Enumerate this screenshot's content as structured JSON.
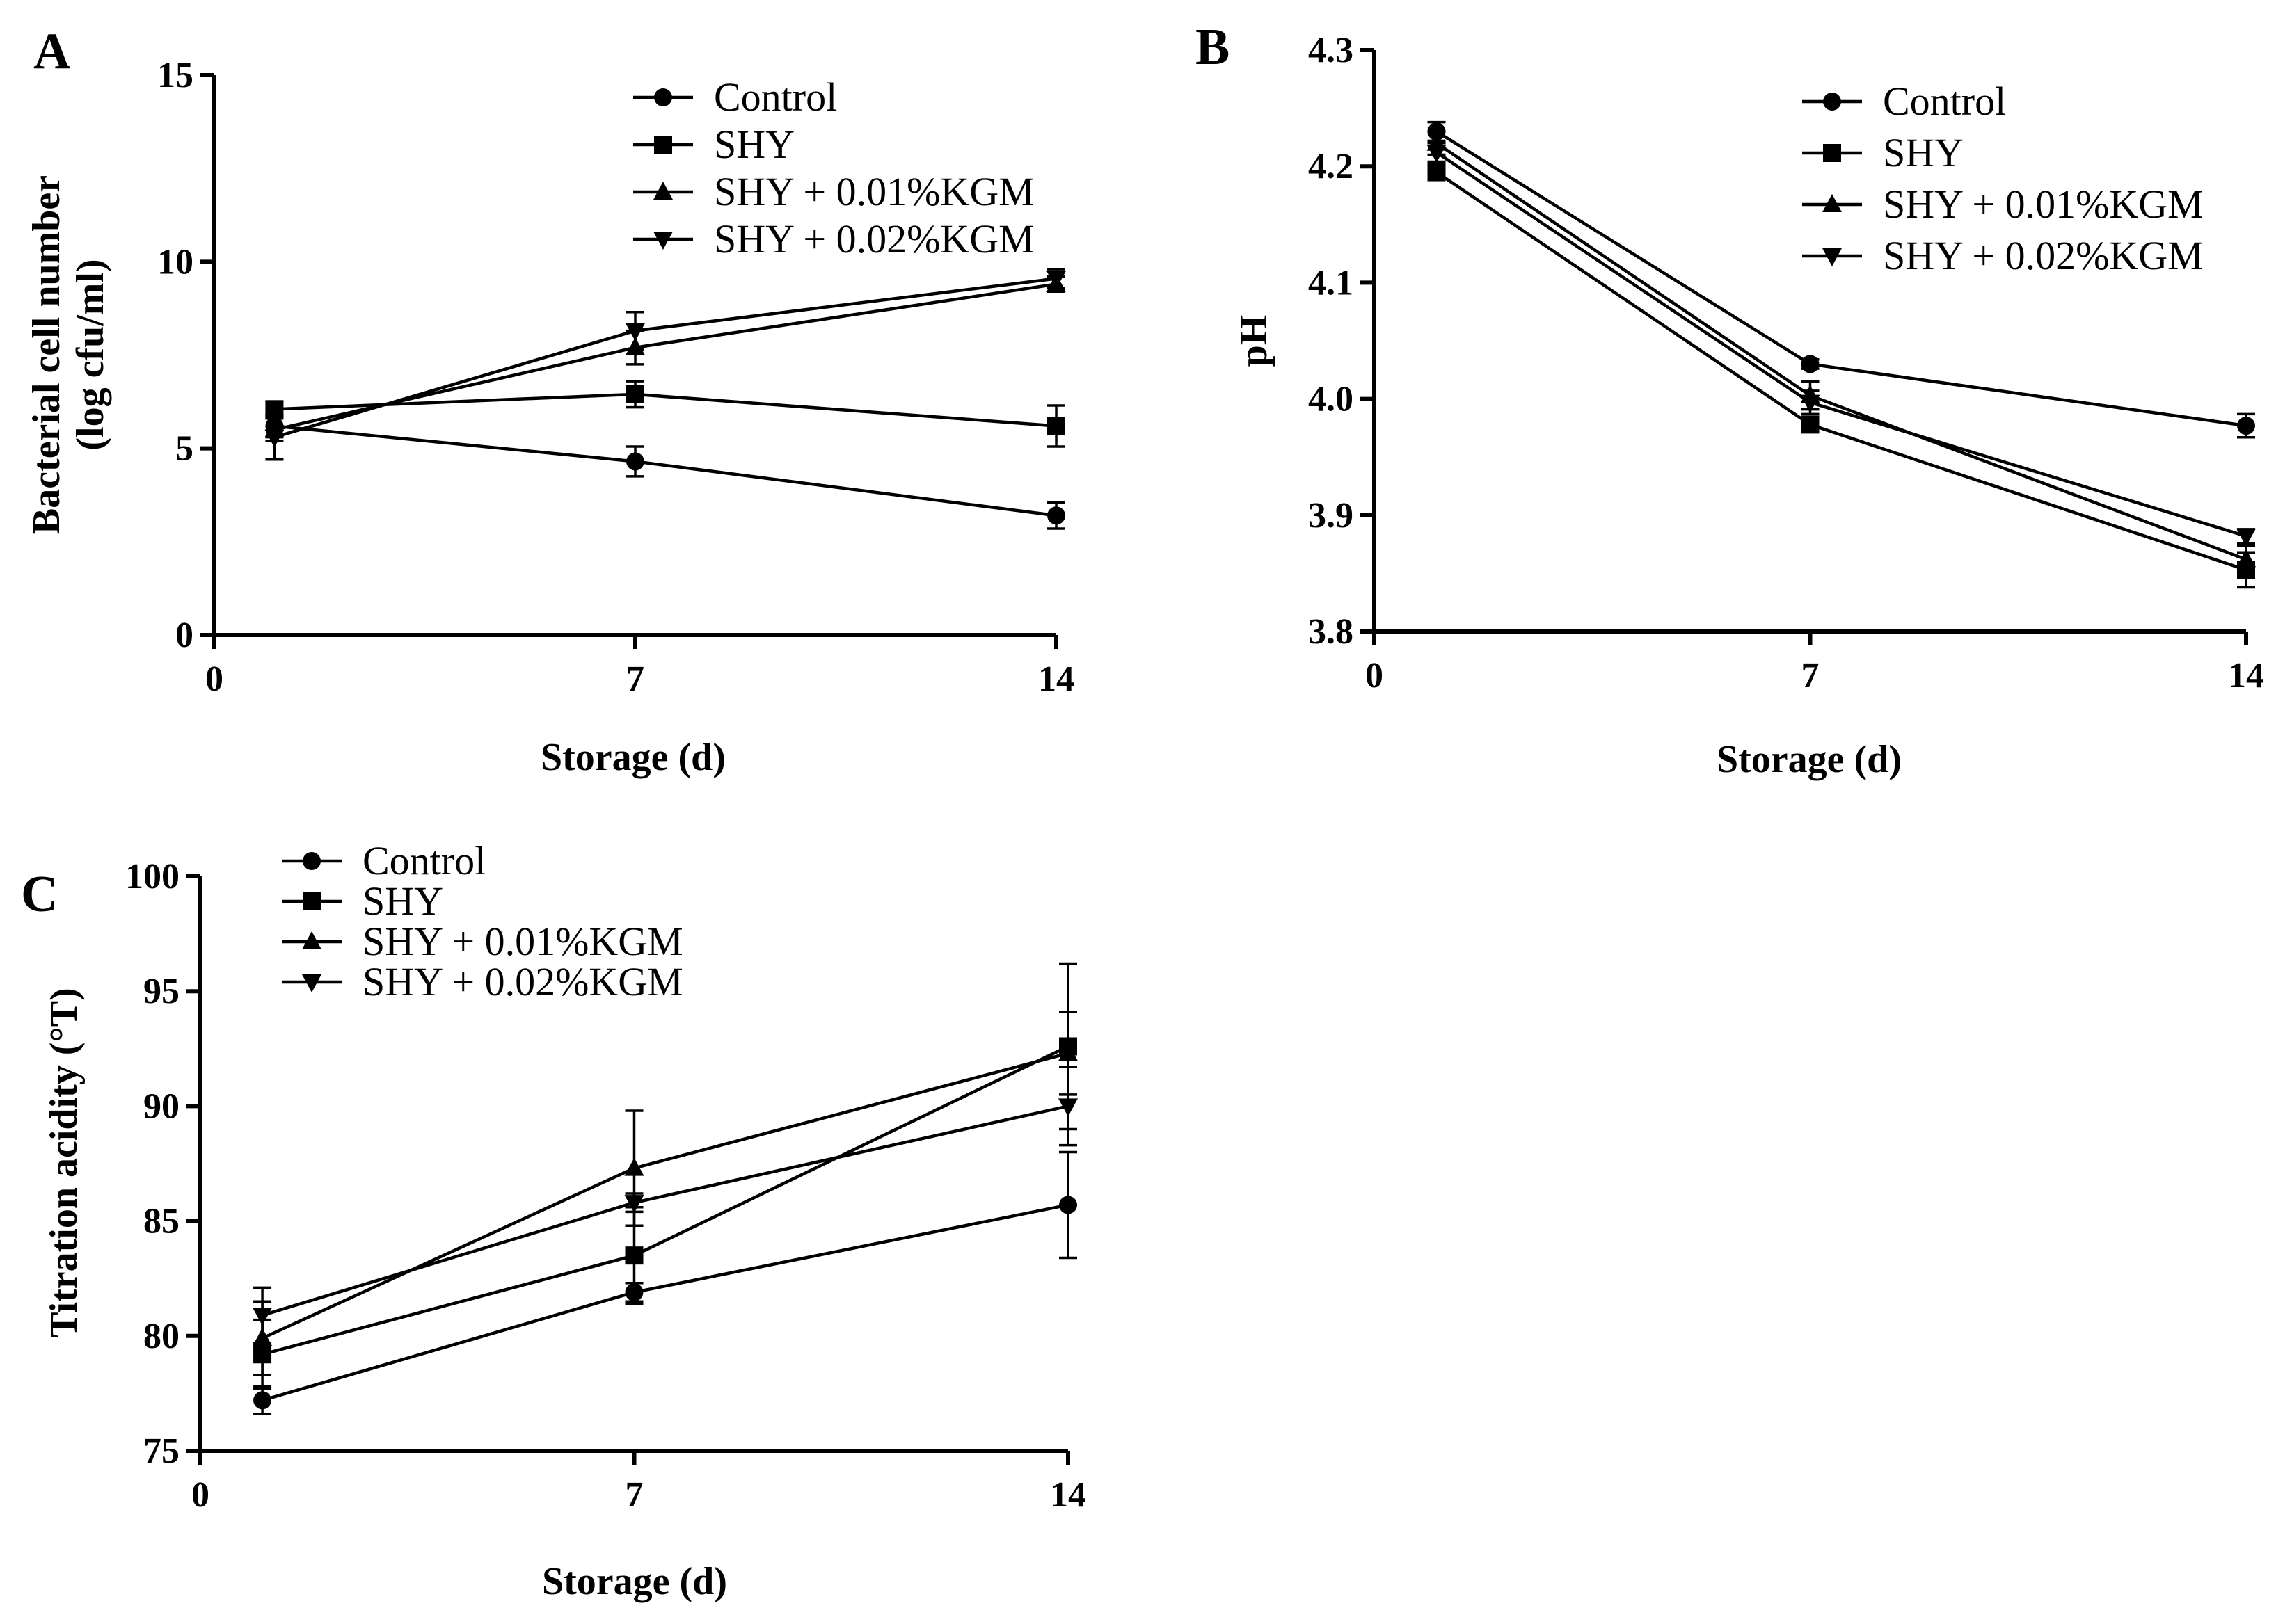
{
  "figure": {
    "panels": [
      "A",
      "B",
      "C"
    ]
  },
  "chart_data": [
    {
      "panel": "A",
      "type": "line",
      "xlabel": "Storage (d)",
      "ylabel": [
        "Bacterial cell number",
        "(log cfu/ml)"
      ],
      "xlim": [
        0,
        14
      ],
      "ylim": [
        0,
        15
      ],
      "xticks": [
        0,
        7,
        14
      ],
      "yticks": [
        0,
        5,
        10,
        15
      ],
      "x": [
        1,
        7,
        14
      ],
      "legend_placement": "top-right",
      "series": [
        {
          "name": "Control",
          "marker": "circle",
          "values": [
            5.6,
            4.65,
            3.2
          ],
          "errors": [
            0.3,
            0.4,
            0.35
          ]
        },
        {
          "name": "SHY",
          "marker": "square",
          "values": [
            6.05,
            6.45,
            5.6
          ],
          "errors": [
            0.2,
            0.35,
            0.55
          ]
        },
        {
          "name": "SHY + 0.01%KGM",
          "marker": "triangle-up",
          "values": [
            5.5,
            7.7,
            9.4
          ],
          "errors": [
            0.3,
            0.45,
            0.2
          ]
        },
        {
          "name": "SHY + 0.02%KGM",
          "marker": "triangle-down",
          "values": [
            5.3,
            8.15,
            9.55
          ],
          "errors": [
            0.6,
            0.5,
            0.25
          ]
        }
      ]
    },
    {
      "panel": "B",
      "type": "line",
      "xlabel": "Storage (d)",
      "ylabel": [
        "pH"
      ],
      "xlim": [
        0,
        14
      ],
      "ylim": [
        3.8,
        4.3
      ],
      "xticks": [
        0,
        7,
        14
      ],
      "yticks": [
        3.8,
        3.9,
        4.0,
        4.1,
        4.2,
        4.3
      ],
      "ytick_labels": [
        "3.8",
        "3.9",
        "4.0",
        "4.1",
        "4.2",
        "4.3"
      ],
      "x": [
        1,
        7,
        14
      ],
      "legend_placement": "top-right",
      "series": [
        {
          "name": "Control",
          "marker": "circle",
          "values": [
            4.23,
            4.03,
            3.977
          ],
          "errors": [
            0.008,
            0.004,
            0.01
          ]
        },
        {
          "name": "SHY",
          "marker": "square",
          "values": [
            4.195,
            3.978,
            3.853
          ],
          "errors": [
            0.005,
            0.006,
            0.015
          ]
        },
        {
          "name": "SHY + 0.01%KGM",
          "marker": "triangle-up",
          "values": [
            4.22,
            4.003,
            3.862
          ],
          "errors": [
            0.01,
            0.012,
            0.012
          ]
        },
        {
          "name": "SHY + 0.02%KGM",
          "marker": "triangle-down",
          "values": [
            4.212,
            3.997,
            3.882
          ],
          "errors": [
            0.008,
            0.01,
            0.006
          ]
        }
      ]
    },
    {
      "panel": "C",
      "type": "line",
      "xlabel": "Storage (d)",
      "ylabel": [
        "Titration acidity (°T)"
      ],
      "xlim": [
        0,
        14
      ],
      "ylim": [
        75,
        100
      ],
      "xticks": [
        0,
        7,
        14
      ],
      "yticks": [
        75,
        80,
        85,
        90,
        95,
        100
      ],
      "x": [
        1,
        7,
        14
      ],
      "legend_placement": "top-left",
      "series": [
        {
          "name": "Control",
          "marker": "circle",
          "values": [
            77.2,
            81.9,
            85.7
          ],
          "errors": [
            0.6,
            0.4,
            2.3
          ]
        },
        {
          "name": "SHY",
          "marker": "square",
          "values": [
            79.2,
            83.5,
            92.6
          ],
          "errors": [
            1.5,
            2.1,
            3.6
          ]
        },
        {
          "name": "SHY + 0.01%KGM",
          "marker": "triangle-up",
          "values": [
            79.9,
            87.3,
            92.3
          ],
          "errors": [
            1.6,
            2.5,
            1.8
          ]
        },
        {
          "name": "SHY + 0.02%KGM",
          "marker": "triangle-down",
          "values": [
            80.9,
            85.8,
            90.0
          ],
          "errors": [
            1.2,
            0.4,
            1.7
          ]
        }
      ]
    }
  ]
}
